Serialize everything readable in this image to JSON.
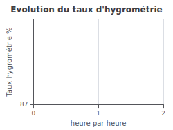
{
  "chart_data": {
    "type": "line",
    "title": "Evolution du taux d'hygrométrie",
    "xlabel": "heure par heure",
    "ylabel": "Taux hygrométrie %",
    "xlim": [
      0,
      2
    ],
    "xticks": [
      0,
      1,
      2
    ],
    "ylim": [
      87.0,
      91.0
    ],
    "yticks": [
      87
    ],
    "grid": true
  }
}
